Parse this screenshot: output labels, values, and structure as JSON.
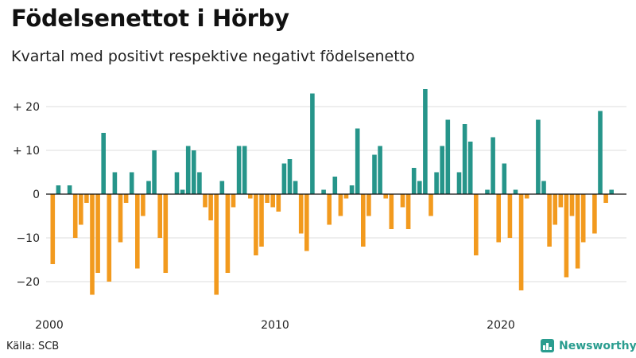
{
  "header": {
    "title": "Födelsenettot i Hörby",
    "subtitle": "Kvartal med positivt respektive negativt födelsenetto"
  },
  "footer": {
    "source": "Källa: SCB",
    "brand": "Newsworthy",
    "brand_icon": "bar-chart-icon"
  },
  "colors": {
    "positive": "#26958a",
    "negative": "#f29a1e",
    "brand": "#2a9d8f"
  },
  "chart_data": {
    "type": "bar",
    "title": "Födelsenettot i Hörby",
    "subtitle": "Kvartal med positivt respektive negativt födelsenetto",
    "xlabel": "",
    "ylabel": "",
    "ylim": [
      -25,
      25
    ],
    "grid": true,
    "y_ticks": [
      {
        "value": 20,
        "label": "+ 20"
      },
      {
        "value": 10,
        "label": "+ 10"
      },
      {
        "value": 0,
        "label": "0"
      },
      {
        "value": -10,
        "label": "−10"
      },
      {
        "value": -20,
        "label": "−20"
      }
    ],
    "x_ticks": [
      {
        "value": 2000,
        "label": "2000"
      },
      {
        "value": 2010,
        "label": "2010"
      },
      {
        "value": 2020,
        "label": "2020"
      }
    ],
    "start_year": 2000,
    "periods_per_year": 4,
    "values": [
      -16,
      2,
      0,
      2,
      -10,
      -7,
      -2,
      -23,
      -18,
      14,
      -20,
      5,
      -11,
      -2,
      5,
      -17,
      -5,
      3,
      10,
      -10,
      -18,
      0,
      5,
      1,
      11,
      10,
      5,
      -3,
      -6,
      -23,
      3,
      -18,
      -3,
      11,
      11,
      -1,
      -14,
      -12,
      -2,
      -3,
      -4,
      7,
      8,
      3,
      -9,
      -13,
      23,
      0,
      1,
      -7,
      4,
      -5,
      -1,
      2,
      15,
      -12,
      -5,
      9,
      11,
      -1,
      -8,
      0,
      -3,
      -8,
      6,
      3,
      24,
      -5,
      5,
      11,
      17,
      0,
      5,
      16,
      12,
      -14,
      0,
      1,
      13,
      -11,
      7,
      -10,
      1,
      -22,
      -1,
      0,
      17,
      3,
      -12,
      -7,
      -3,
      -19,
      -5,
      -17,
      -11,
      0,
      -9,
      19,
      -2,
      1
    ]
  }
}
